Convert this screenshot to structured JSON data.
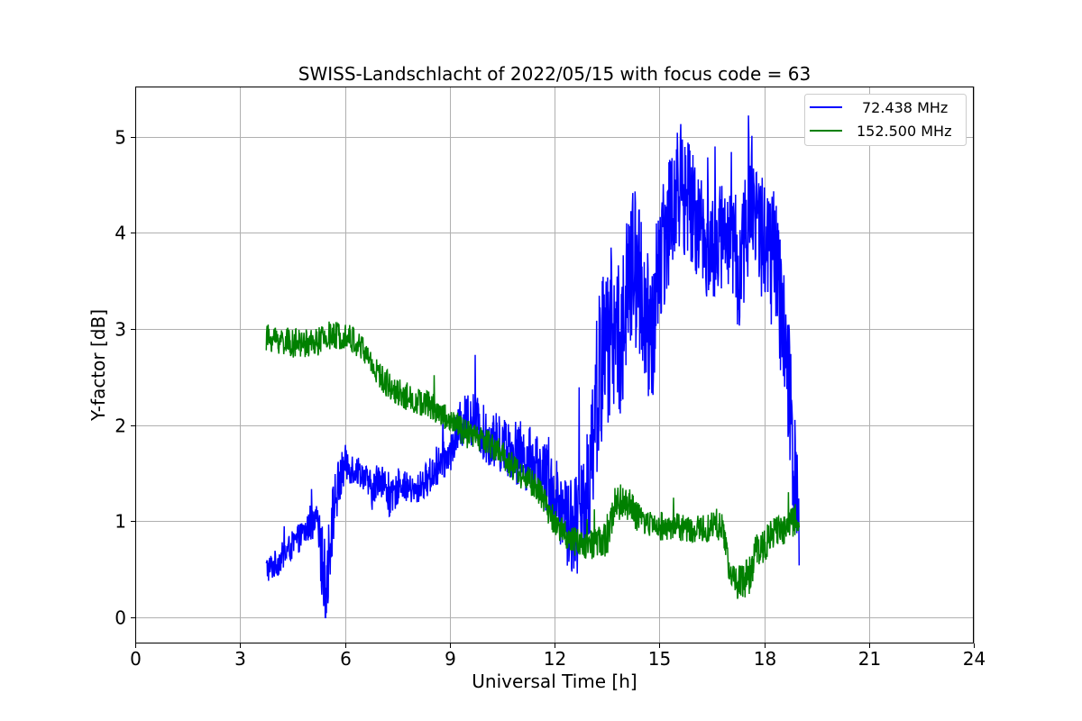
{
  "chart_data": {
    "type": "line",
    "title": "SWISS-Landschlacht of 2022/05/15 with focus code = 63",
    "xlabel": "Universal Time [h]",
    "ylabel": "Y-factor [dB]",
    "xlim": [
      0,
      24
    ],
    "ylim": [
      -0.27,
      5.52
    ],
    "xticks": [
      0,
      3,
      6,
      9,
      12,
      15,
      18,
      21,
      24
    ],
    "xtick_labels": [
      "0",
      "3",
      "6",
      "9",
      "12",
      "15",
      "18",
      "21",
      "24"
    ],
    "yticks": [
      0,
      1,
      2,
      3,
      4,
      5
    ],
    "ytick_labels": [
      "0",
      "1",
      "2",
      "3",
      "4",
      "5"
    ],
    "grid": true,
    "legend_position": "top-right",
    "series": [
      {
        "name": "72.438 MHz",
        "color": "#0000ff",
        "x": [
          3.75,
          4.0,
          4.5,
          5.0,
          5.2,
          5.35,
          5.45,
          5.7,
          6.0,
          6.5,
          6.8,
          7.0,
          7.3,
          7.6,
          8.0,
          8.5,
          9.0,
          9.3,
          9.6,
          10.0,
          10.5,
          11.0,
          11.5,
          12.0,
          12.4,
          12.8,
          13.0,
          13.3,
          13.6,
          13.9,
          14.2,
          14.5,
          14.75,
          15.0,
          15.3,
          15.6,
          16.0,
          16.5,
          17.0,
          17.3,
          17.6,
          18.0,
          18.3,
          18.6,
          18.8,
          19.0
        ],
        "y": [
          0.5,
          0.55,
          0.75,
          0.95,
          0.95,
          0.6,
          0.3,
          1.2,
          1.6,
          1.5,
          1.3,
          1.5,
          1.2,
          1.4,
          1.3,
          1.5,
          1.7,
          2.0,
          2.1,
          1.9,
          1.8,
          1.7,
          1.6,
          1.3,
          1.0,
          1.0,
          1.6,
          2.6,
          3.0,
          2.9,
          3.6,
          3.5,
          2.6,
          3.8,
          4.2,
          4.5,
          4.2,
          3.8,
          4.0,
          3.6,
          4.4,
          3.9,
          3.7,
          2.8,
          1.8,
          1.2
        ],
        "noise": [
          0.15,
          0.15,
          0.15,
          0.15,
          0.2,
          0.4,
          0.45,
          0.35,
          0.2,
          0.15,
          0.2,
          0.2,
          0.2,
          0.15,
          0.15,
          0.2,
          0.2,
          0.25,
          0.3,
          0.3,
          0.3,
          0.35,
          0.35,
          0.4,
          0.5,
          0.6,
          0.8,
          0.9,
          0.9,
          0.8,
          0.9,
          0.9,
          0.9,
          0.8,
          0.7,
          0.7,
          0.6,
          0.6,
          0.6,
          0.7,
          0.7,
          0.7,
          0.8,
          0.8,
          0.8,
          0.8
        ]
      },
      {
        "name": "152.500 MHz",
        "color": "#008000",
        "x": [
          3.75,
          4.0,
          4.5,
          5.0,
          5.5,
          6.0,
          6.5,
          7.0,
          7.5,
          8.0,
          8.5,
          9.0,
          9.5,
          10.0,
          10.5,
          11.0,
          11.5,
          12.0,
          12.5,
          13.0,
          13.5,
          13.75,
          14.0,
          14.5,
          15.0,
          15.5,
          16.0,
          16.5,
          16.8,
          17.0,
          17.3,
          17.6,
          17.8,
          18.0,
          18.3,
          18.6,
          19.0
        ],
        "y": [
          2.9,
          2.9,
          2.85,
          2.85,
          2.9,
          2.95,
          2.8,
          2.5,
          2.35,
          2.25,
          2.2,
          2.05,
          1.9,
          1.85,
          1.7,
          1.5,
          1.35,
          1.0,
          0.8,
          0.75,
          0.8,
          1.2,
          1.2,
          1.0,
          0.95,
          0.95,
          0.9,
          0.95,
          0.95,
          0.5,
          0.35,
          0.45,
          0.75,
          0.75,
          0.9,
          0.9,
          1.1
        ],
        "noise": [
          0.15,
          0.15,
          0.15,
          0.15,
          0.15,
          0.15,
          0.15,
          0.15,
          0.15,
          0.15,
          0.15,
          0.15,
          0.15,
          0.15,
          0.15,
          0.15,
          0.15,
          0.15,
          0.15,
          0.15,
          0.2,
          0.2,
          0.2,
          0.15,
          0.15,
          0.15,
          0.15,
          0.15,
          0.15,
          0.15,
          0.2,
          0.2,
          0.2,
          0.2,
          0.15,
          0.15,
          0.2
        ]
      }
    ]
  }
}
